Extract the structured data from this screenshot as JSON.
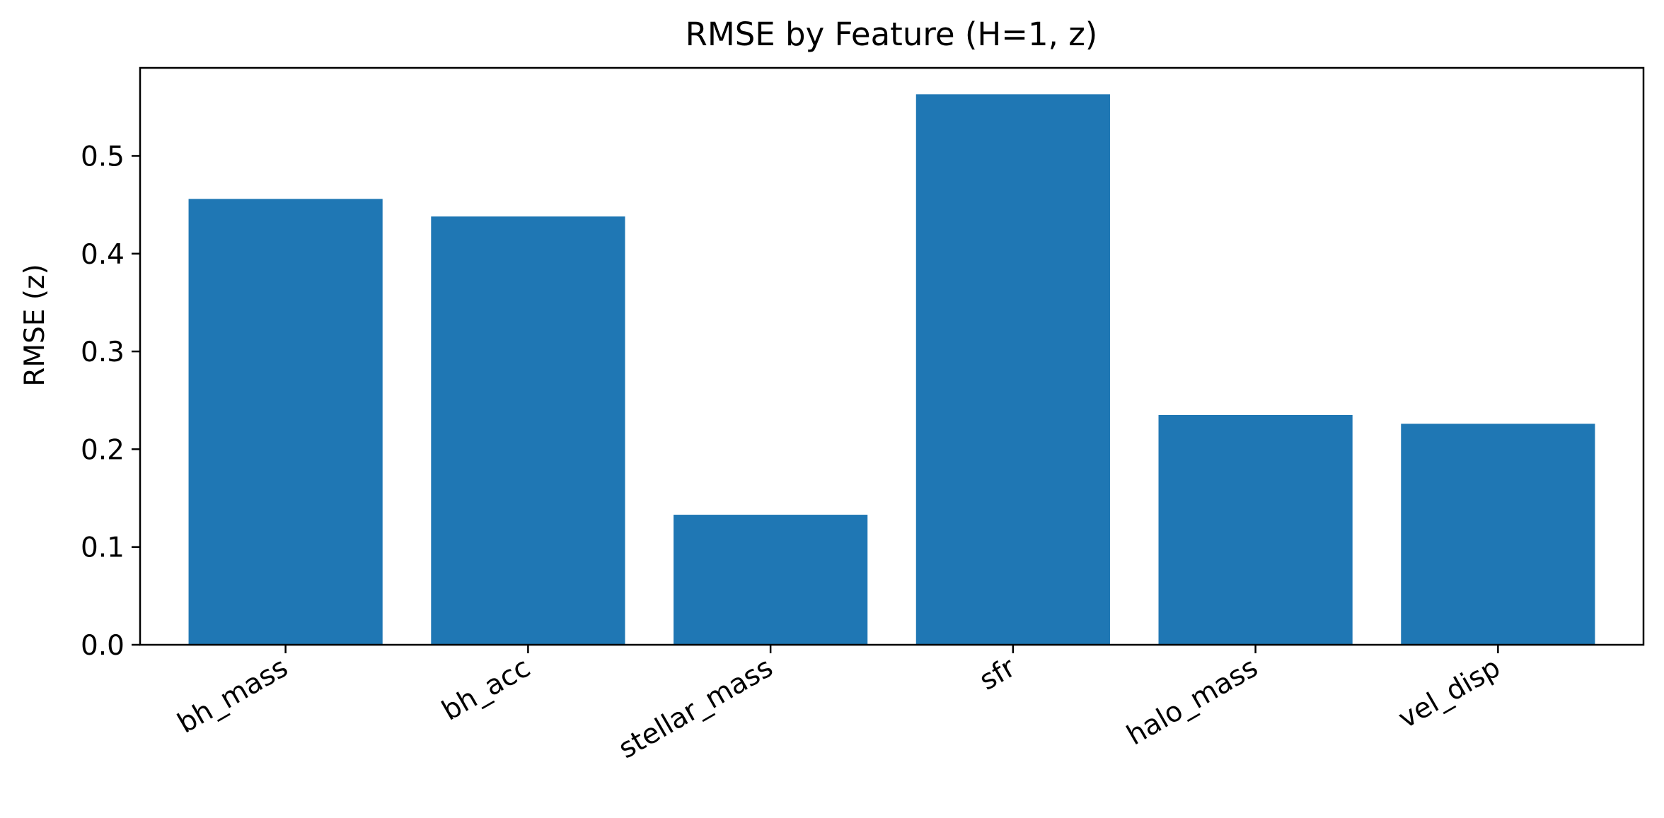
{
  "chart_data": {
    "type": "bar",
    "title": "RMSE by Feature (H=1, z)",
    "xlabel": "",
    "ylabel": "RMSE (z)",
    "categories": [
      "bh_mass",
      "bh_acc",
      "stellar_mass",
      "sfr",
      "halo_mass",
      "vel_disp"
    ],
    "values": [
      0.456,
      0.438,
      0.133,
      0.563,
      0.235,
      0.226
    ],
    "ylim": [
      0,
      0.59
    ],
    "yticks": [
      0.0,
      0.1,
      0.2,
      0.3,
      0.4,
      0.5
    ],
    "ytick_labels": [
      "0.0",
      "0.1",
      "0.2",
      "0.3",
      "0.4",
      "0.5"
    ],
    "grid": false,
    "legend": "none",
    "bar_color": "#1f77b4",
    "xtick_rotation_deg": -30
  }
}
